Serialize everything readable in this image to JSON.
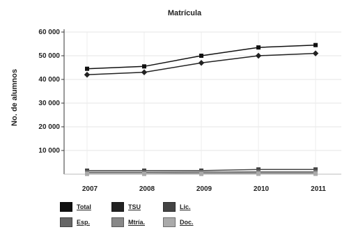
{
  "chart_data": {
    "type": "line",
    "title": "Matrícula",
    "ylabel": "No. de alumnos",
    "xlabel": "",
    "categories": [
      "2007",
      "2008",
      "2009",
      "2010",
      "2011"
    ],
    "y_ticks": [
      "10 000",
      "20 000",
      "30 000",
      "40 000",
      "50 000",
      "60 000"
    ],
    "ylim": [
      0,
      60000
    ],
    "grid": true,
    "legend_position": "bottom-left",
    "series": [
      {
        "name": "Total",
        "color": "#111111",
        "marker": "square",
        "values": [
          44500,
          45500,
          50000,
          53500,
          54500
        ]
      },
      {
        "name": "TSU",
        "color": "#222222",
        "marker": "diamond",
        "values": [
          42000,
          43000,
          47000,
          50000,
          51000
        ]
      },
      {
        "name": "Lic.",
        "color": "#444444",
        "marker": "square",
        "values": [
          1500,
          1500,
          1500,
          2000,
          2000
        ]
      },
      {
        "name": "Esp.",
        "color": "#666666",
        "marker": "square",
        "values": [
          800,
          800,
          900,
          1000,
          1000
        ]
      },
      {
        "name": "Mtría.",
        "color": "#888888",
        "marker": "square",
        "values": [
          300,
          300,
          400,
          500,
          500
        ]
      },
      {
        "name": "Doc.",
        "color": "#aaaaaa",
        "marker": "square",
        "values": [
          100,
          100,
          100,
          150,
          150
        ]
      }
    ]
  }
}
